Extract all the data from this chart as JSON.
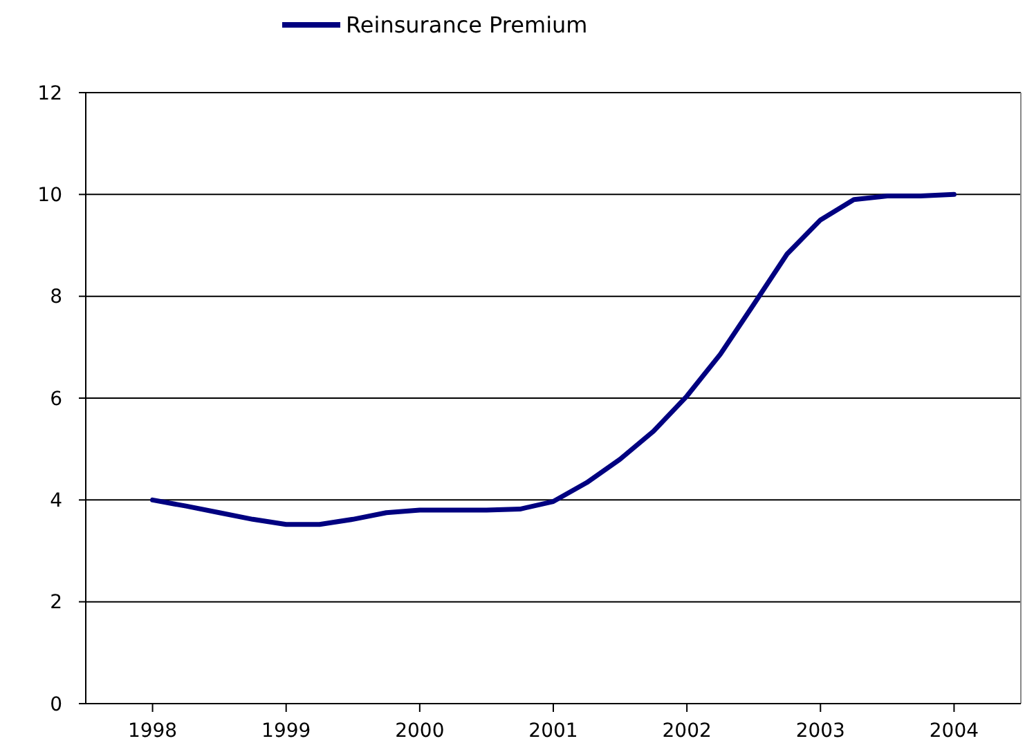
{
  "chart_data": {
    "type": "line",
    "x": [
      1998,
      1998.25,
      1998.5,
      1998.75,
      1999,
      1999.25,
      1999.5,
      1999.75,
      2000,
      2000.25,
      2000.5,
      2000.75,
      2001,
      2001.25,
      2001.5,
      2001.75,
      2002,
      2002.25,
      2002.5,
      2002.75,
      2003,
      2003.25,
      2003.5,
      2003.75,
      2004
    ],
    "series": [
      {
        "name": "Reinsurance Premium",
        "color": "#000080",
        "values": [
          4.0,
          3.88,
          3.75,
          3.62,
          3.52,
          3.52,
          3.62,
          3.75,
          3.8,
          3.8,
          3.8,
          3.82,
          3.97,
          4.34,
          4.8,
          5.35,
          6.04,
          6.86,
          7.84,
          8.83,
          9.5,
          9.9,
          9.97,
          9.97,
          10.0
        ]
      }
    ],
    "xlim": [
      1997.5,
      2004.5
    ],
    "xticks": [
      1998,
      1999,
      2000,
      2001,
      2002,
      2003,
      2004
    ],
    "ylim": [
      0,
      12
    ],
    "yticks": [
      0,
      2,
      4,
      6,
      8,
      10,
      12
    ],
    "grid": "y",
    "legend": "top",
    "marker": "none",
    "line_style": "solid"
  }
}
